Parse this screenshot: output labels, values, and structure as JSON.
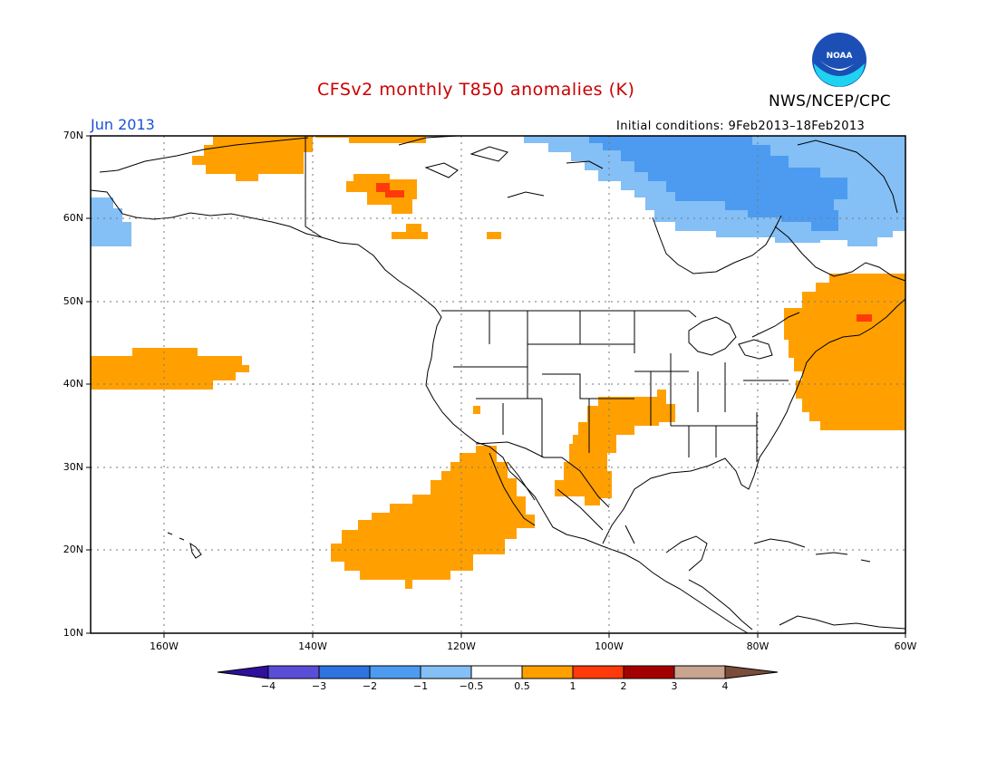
{
  "title": "CFSv2 monthly T850 anomalies (K)",
  "agency": "NWS/NCEP/CPC",
  "valid_month": "Jun 2013",
  "initial_conditions": "Initial conditions: 9Feb2013–18Feb2013",
  "logo_text": "NOAA",
  "colors": {
    "title": "#cc0000",
    "month": "#1a4fd6",
    "logo_blue": "#1b4fb5",
    "logo_cyan": "#1fd3f0"
  },
  "map": {
    "lat_labels": [
      "70N",
      "60N",
      "50N",
      "40N",
      "30N",
      "20N",
      "10N"
    ],
    "lon_labels": [
      "160W",
      "140W",
      "120W",
      "100W",
      "80W",
      "60W"
    ]
  },
  "colorbar": {
    "labels": [
      "−4",
      "−3",
      "−2",
      "−1",
      "−0.5",
      "0.5",
      "1",
      "2",
      "3",
      "4"
    ],
    "colors": [
      "#2e0f9e",
      "#5a4ed8",
      "#2f73e0",
      "#4d9bf0",
      "#84bff5",
      "#ffffff",
      "#ffa000",
      "#ff3a0a",
      "#a50000",
      "#c9a491",
      "#7a4c3c"
    ]
  },
  "anomaly_colors": {
    "warm_1": "#ffa000",
    "warm_2": "#ff3a0a",
    "cool_05": "#84bff5",
    "cool_1": "#4d9bf0"
  }
}
